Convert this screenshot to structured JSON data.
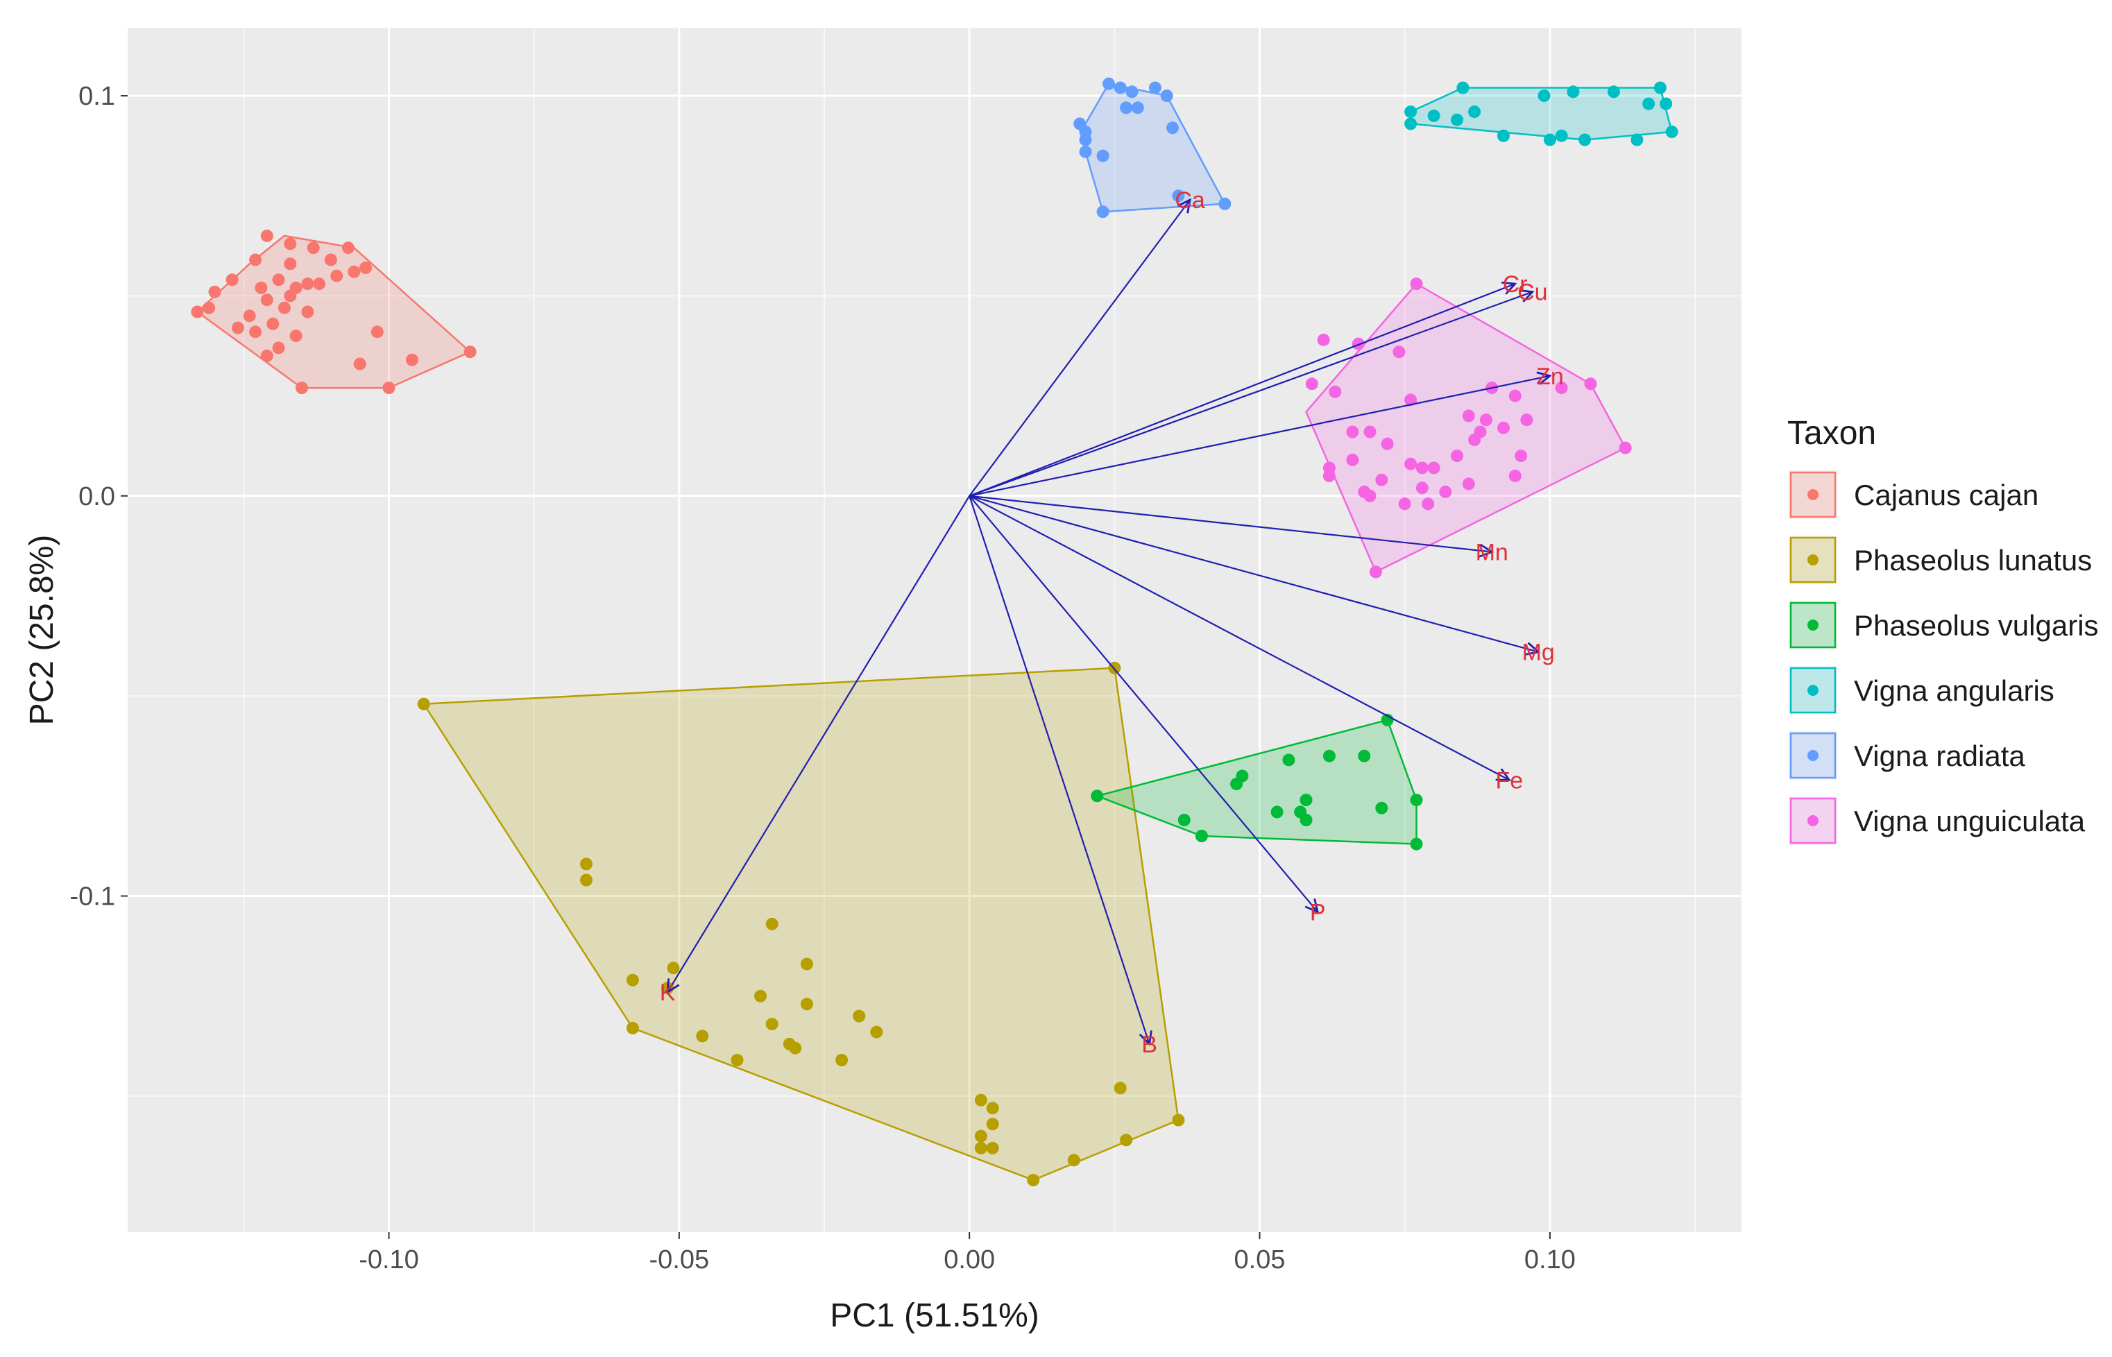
{
  "chart_data": {
    "type": "scatter",
    "subtype": "pca-biplot",
    "xlabel": "PC1 (51.51%)",
    "ylabel": "PC2 (25.8%)",
    "xlim": [
      -0.145,
      0.133
    ],
    "ylim": [
      -0.184,
      0.117
    ],
    "xticks": [
      -0.1,
      -0.05,
      0.0,
      0.05,
      0.1
    ],
    "xtick_labels": [
      "-0.10",
      "-0.05",
      "0.00",
      "0.05",
      "0.10"
    ],
    "yticks": [
      -0.1,
      0.0,
      0.1
    ],
    "ytick_labels": [
      "-0.1",
      "0.0",
      "0.1"
    ],
    "grid": true,
    "legend": {
      "title": "Taxon",
      "placement": "right"
    },
    "series": [
      {
        "name": "Cajanus cajan",
        "color": "#F8766D",
        "points": [
          [
            -0.121,
            0.065
          ],
          [
            -0.117,
            0.063
          ],
          [
            -0.113,
            0.062
          ],
          [
            -0.107,
            0.062
          ],
          [
            -0.123,
            0.059
          ],
          [
            -0.117,
            0.058
          ],
          [
            -0.11,
            0.059
          ],
          [
            -0.104,
            0.057
          ],
          [
            -0.127,
            0.054
          ],
          [
            -0.119,
            0.054
          ],
          [
            -0.114,
            0.053
          ],
          [
            -0.106,
            0.056
          ],
          [
            -0.13,
            0.051
          ],
          [
            -0.122,
            0.052
          ],
          [
            -0.116,
            0.052
          ],
          [
            -0.109,
            0.055
          ],
          [
            -0.131,
            0.047
          ],
          [
            -0.121,
            0.049
          ],
          [
            -0.117,
            0.05
          ],
          [
            -0.112,
            0.053
          ],
          [
            -0.133,
            0.046
          ],
          [
            -0.124,
            0.045
          ],
          [
            -0.118,
            0.047
          ],
          [
            -0.114,
            0.046
          ],
          [
            -0.126,
            0.042
          ],
          [
            -0.12,
            0.043
          ],
          [
            -0.116,
            0.04
          ],
          [
            -0.123,
            0.041
          ],
          [
            -0.119,
            0.037
          ],
          [
            -0.102,
            0.041
          ],
          [
            -0.105,
            0.033
          ],
          [
            -0.1,
            0.027
          ],
          [
            -0.115,
            0.027
          ],
          [
            -0.096,
            0.034
          ],
          [
            -0.086,
            0.036
          ],
          [
            -0.121,
            0.035
          ]
        ],
        "hull": [
          [
            -0.118,
            0.065
          ],
          [
            -0.106,
            0.062
          ],
          [
            -0.086,
            0.036
          ],
          [
            -0.1,
            0.027
          ],
          [
            -0.115,
            0.027
          ],
          [
            -0.133,
            0.046
          ],
          [
            -0.124,
            0.058
          ]
        ]
      },
      {
        "name": "Phaseolus lunatus",
        "color": "#B79F00",
        "points": [
          [
            -0.094,
            -0.052
          ],
          [
            0.025,
            -0.043
          ],
          [
            -0.066,
            -0.092
          ],
          [
            -0.066,
            -0.096
          ],
          [
            -0.034,
            -0.107
          ],
          [
            -0.028,
            -0.117
          ],
          [
            -0.058,
            -0.121
          ],
          [
            -0.052,
            -0.123
          ],
          [
            -0.051,
            -0.118
          ],
          [
            -0.036,
            -0.125
          ],
          [
            -0.028,
            -0.127
          ],
          [
            -0.034,
            -0.132
          ],
          [
            -0.019,
            -0.13
          ],
          [
            -0.016,
            -0.134
          ],
          [
            -0.046,
            -0.135
          ],
          [
            -0.031,
            -0.137
          ],
          [
            -0.03,
            -0.138
          ],
          [
            -0.022,
            -0.141
          ],
          [
            -0.04,
            -0.141
          ],
          [
            -0.058,
            -0.133
          ],
          [
            0.002,
            -0.151
          ],
          [
            0.004,
            -0.153
          ],
          [
            0.004,
            -0.157
          ],
          [
            0.002,
            -0.16
          ],
          [
            0.002,
            -0.163
          ],
          [
            0.004,
            -0.163
          ],
          [
            0.026,
            -0.148
          ],
          [
            0.036,
            -0.156
          ],
          [
            0.027,
            -0.161
          ],
          [
            0.018,
            -0.166
          ],
          [
            0.011,
            -0.171
          ]
        ],
        "hull": [
          [
            -0.094,
            -0.052
          ],
          [
            0.025,
            -0.043
          ],
          [
            0.036,
            -0.156
          ],
          [
            0.011,
            -0.171
          ],
          [
            -0.058,
            -0.133
          ]
        ]
      },
      {
        "name": "Phaseolus vulgaris",
        "color": "#00BA38",
        "points": [
          [
            0.072,
            -0.056
          ],
          [
            0.068,
            -0.065
          ],
          [
            0.062,
            -0.065
          ],
          [
            0.055,
            -0.066
          ],
          [
            0.047,
            -0.07
          ],
          [
            0.046,
            -0.072
          ],
          [
            0.058,
            -0.076
          ],
          [
            0.053,
            -0.079
          ],
          [
            0.057,
            -0.079
          ],
          [
            0.071,
            -0.078
          ],
          [
            0.077,
            -0.076
          ],
          [
            0.058,
            -0.081
          ],
          [
            0.037,
            -0.081
          ],
          [
            0.04,
            -0.085
          ],
          [
            0.022,
            -0.075
          ],
          [
            0.077,
            -0.087
          ]
        ],
        "hull": [
          [
            0.022,
            -0.075
          ],
          [
            0.072,
            -0.056
          ],
          [
            0.077,
            -0.076
          ],
          [
            0.077,
            -0.087
          ],
          [
            0.04,
            -0.085
          ]
        ]
      },
      {
        "name": "Vigna angularis",
        "color": "#00BFC4",
        "points": [
          [
            0.085,
            0.102
          ],
          [
            0.099,
            0.1
          ],
          [
            0.104,
            0.101
          ],
          [
            0.111,
            0.101
          ],
          [
            0.119,
            0.102
          ],
          [
            0.117,
            0.098
          ],
          [
            0.12,
            0.098
          ],
          [
            0.076,
            0.096
          ],
          [
            0.08,
            0.095
          ],
          [
            0.087,
            0.096
          ],
          [
            0.076,
            0.093
          ],
          [
            0.084,
            0.094
          ],
          [
            0.092,
            0.09
          ],
          [
            0.1,
            0.089
          ],
          [
            0.102,
            0.09
          ],
          [
            0.106,
            0.089
          ],
          [
            0.115,
            0.089
          ],
          [
            0.121,
            0.091
          ]
        ],
        "hull": [
          [
            0.076,
            0.096
          ],
          [
            0.085,
            0.102
          ],
          [
            0.119,
            0.102
          ],
          [
            0.121,
            0.091
          ],
          [
            0.106,
            0.089
          ],
          [
            0.076,
            0.093
          ]
        ]
      },
      {
        "name": "Vigna radiata",
        "color": "#619CFF",
        "points": [
          [
            0.024,
            0.103
          ],
          [
            0.026,
            0.102
          ],
          [
            0.028,
            0.101
          ],
          [
            0.032,
            0.102
          ],
          [
            0.034,
            0.1
          ],
          [
            0.019,
            0.093
          ],
          [
            0.02,
            0.091
          ],
          [
            0.027,
            0.097
          ],
          [
            0.029,
            0.097
          ],
          [
            0.035,
            0.092
          ],
          [
            0.02,
            0.089
          ],
          [
            0.02,
            0.086
          ],
          [
            0.023,
            0.085
          ],
          [
            0.036,
            0.075
          ],
          [
            0.044,
            0.073
          ],
          [
            0.023,
            0.071
          ]
        ],
        "hull": [
          [
            0.02,
            0.093
          ],
          [
            0.024,
            0.103
          ],
          [
            0.034,
            0.1
          ],
          [
            0.044,
            0.073
          ],
          [
            0.023,
            0.071
          ],
          [
            0.02,
            0.086
          ]
        ]
      },
      {
        "name": "Vigna unguiculata",
        "color": "#F564E3",
        "points": [
          [
            0.077,
            0.053
          ],
          [
            0.061,
            0.039
          ],
          [
            0.067,
            0.038
          ],
          [
            0.074,
            0.036
          ],
          [
            0.059,
            0.028
          ],
          [
            0.063,
            0.026
          ],
          [
            0.076,
            0.024
          ],
          [
            0.09,
            0.027
          ],
          [
            0.094,
            0.025
          ],
          [
            0.102,
            0.027
          ],
          [
            0.107,
            0.028
          ],
          [
            0.086,
            0.02
          ],
          [
            0.089,
            0.019
          ],
          [
            0.092,
            0.017
          ],
          [
            0.088,
            0.016
          ],
          [
            0.096,
            0.019
          ],
          [
            0.066,
            0.016
          ],
          [
            0.069,
            0.016
          ],
          [
            0.072,
            0.013
          ],
          [
            0.084,
            0.01
          ],
          [
            0.087,
            0.014
          ],
          [
            0.095,
            0.01
          ],
          [
            0.062,
            0.007
          ],
          [
            0.066,
            0.009
          ],
          [
            0.076,
            0.008
          ],
          [
            0.078,
            0.007
          ],
          [
            0.08,
            0.007
          ],
          [
            0.094,
            0.005
          ],
          [
            0.062,
            0.005
          ],
          [
            0.068,
            0.001
          ],
          [
            0.071,
            0.004
          ],
          [
            0.078,
            0.002
          ],
          [
            0.082,
            0.001
          ],
          [
            0.086,
            0.003
          ],
          [
            0.075,
            -0.002
          ],
          [
            0.079,
            -0.002
          ],
          [
            0.069,
            0.0
          ],
          [
            0.113,
            0.012
          ],
          [
            0.07,
            -0.019
          ]
        ],
        "hull": [
          [
            0.077,
            0.053
          ],
          [
            0.107,
            0.028
          ],
          [
            0.113,
            0.012
          ],
          [
            0.07,
            -0.019
          ],
          [
            0.058,
            0.021
          ]
        ]
      }
    ],
    "loadings": [
      {
        "label": "Ca",
        "x": 0.038,
        "y": 0.074
      },
      {
        "label": "Cu",
        "x": 0.097,
        "y": 0.051
      },
      {
        "label": "Cr",
        "x": 0.094,
        "y": 0.053
      },
      {
        "label": "Zn",
        "x": 0.1,
        "y": 0.03
      },
      {
        "label": "Mn",
        "x": 0.09,
        "y": -0.014
      },
      {
        "label": "Mg",
        "x": 0.098,
        "y": -0.039
      },
      {
        "label": "Fe",
        "x": 0.093,
        "y": -0.071
      },
      {
        "label": "P",
        "x": 0.06,
        "y": -0.104
      },
      {
        "label": "B",
        "x": 0.031,
        "y": -0.137
      },
      {
        "label": "K",
        "x": -0.052,
        "y": -0.124
      }
    ],
    "arrow_color": "#1f1fb0",
    "loading_label_color": "#e0303a"
  }
}
